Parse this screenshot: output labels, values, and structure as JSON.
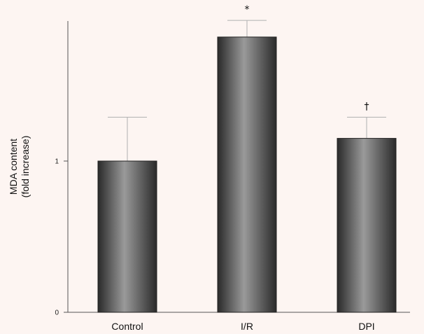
{
  "chart_data": {
    "type": "bar",
    "categories": [
      "Control",
      "I/R",
      "DPI"
    ],
    "values": [
      1.0,
      1.82,
      1.15
    ],
    "error_upper": [
      1.29,
      1.93,
      1.29
    ],
    "annotations": [
      "",
      "*",
      "†"
    ],
    "ylabel_line1": "MDA content",
    "ylabel_line2": "(fold increase)",
    "yticks": [
      0,
      1
    ],
    "ytick_labels": [
      "0",
      "1"
    ],
    "ylim": [
      0,
      2.0
    ],
    "grid": false,
    "colors": {
      "background": "#fdf5f2",
      "bar_dark": "#2a2a2a",
      "bar_light": "#9a9a9a",
      "axis": "#555555",
      "error": "#b0b0b0"
    }
  }
}
